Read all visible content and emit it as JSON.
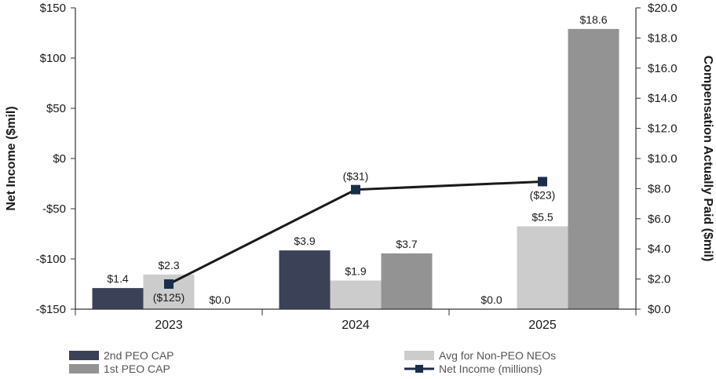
{
  "chart_data": {
    "type": "bar",
    "categories": [
      "2023",
      "2024",
      "2025"
    ],
    "series": [
      {
        "name": "2nd PEO CAP",
        "axis": "right",
        "color": "#3b4157",
        "values": [
          1.4,
          3.9,
          0.0
        ],
        "labels": [
          "$1.4",
          "$3.9",
          "$0.0"
        ]
      },
      {
        "name": "Avg for Non-PEO NEOs",
        "axis": "right",
        "color": "#cccccc",
        "values": [
          2.3,
          1.9,
          5.5
        ],
        "labels": [
          "$2.3",
          "$1.9",
          "$5.5"
        ]
      },
      {
        "name": "1st PEO CAP",
        "axis": "right",
        "color": "#939393",
        "values": [
          0.0,
          3.7,
          18.6
        ],
        "labels": [
          "$0.0",
          "$3.7",
          "$18.6"
        ]
      }
    ],
    "line_series": {
      "name": "Net Income (millions)",
      "axis": "left",
      "color": "#1a1a1a",
      "marker_color": "#1a2e4a",
      "values": [
        -125,
        -31,
        -23
      ],
      "labels": [
        "($125)",
        "($31)",
        "($23)"
      ]
    },
    "left_axis": {
      "title": "Net Income ($mil)",
      "range": [
        -150,
        150
      ],
      "ticks": [
        150,
        100,
        50,
        0,
        -50,
        -100,
        -150
      ],
      "tick_labels": [
        "$150",
        "$100",
        "$50",
        "$0",
        "-$50",
        "-$100",
        "-$150"
      ]
    },
    "right_axis": {
      "title": "Compensation Actually Paid ($mil)",
      "range": [
        0,
        20
      ],
      "ticks": [
        20,
        18,
        16,
        14,
        12,
        10,
        8,
        6,
        4,
        2,
        0
      ],
      "tick_labels": [
        "$20.0",
        "$18.0",
        "$16.0",
        "$14.0",
        "$12.0",
        "$10.0",
        "$8.0",
        "$6.0",
        "$4.0",
        "$2.0",
        "$0.0"
      ]
    },
    "legend": [
      {
        "label": "2nd PEO CAP",
        "kind": "bar",
        "color": "#3b4157"
      },
      {
        "label": "Avg for Non-PEO NEOs",
        "kind": "bar",
        "color": "#cccccc"
      },
      {
        "label": "1st PEO CAP",
        "kind": "bar",
        "color": "#939393"
      },
      {
        "label": "Net Income (millions)",
        "kind": "line",
        "color": "#1a2e4a"
      }
    ],
    "grid": false,
    "legend_position": "bottom"
  }
}
